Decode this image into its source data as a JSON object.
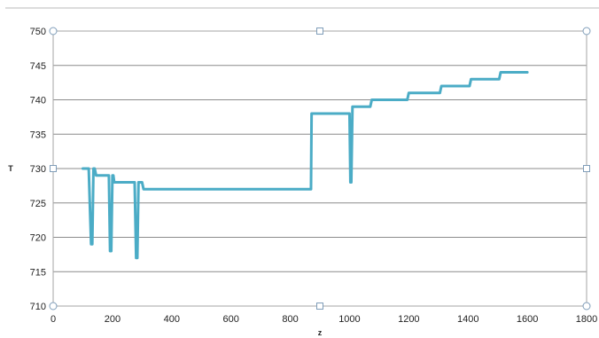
{
  "chart_data": {
    "type": "line",
    "title": "",
    "xlabel": "z",
    "ylabel": "T",
    "xlim": [
      0,
      1800
    ],
    "ylim": [
      710,
      750
    ],
    "x_ticks": [
      0,
      200,
      400,
      600,
      800,
      1000,
      1200,
      1400,
      1600,
      1800
    ],
    "y_ticks": [
      710,
      715,
      720,
      725,
      730,
      735,
      740,
      745,
      750
    ],
    "horizontal_grid": true,
    "vertical_grid": false,
    "legend": "none",
    "selection_handles": true,
    "line_color": "#4bacc6",
    "series": [
      {
        "x": [
          100,
          120,
          128,
          132,
          136,
          140,
          145,
          150,
          155,
          188,
          192,
          196,
          200,
          203,
          206,
          210,
          275,
          280,
          284,
          288,
          292,
          300,
          305,
          310,
          870,
          872,
          1000,
          1003,
          1006,
          1010,
          1015,
          1070,
          1075,
          1080,
          1195,
          1200,
          1305,
          1310,
          1405,
          1410,
          1505,
          1510,
          1600
        ],
        "y": [
          730,
          730,
          719,
          719,
          730,
          730,
          729,
          729,
          729,
          729,
          718,
          718,
          729,
          729,
          728,
          728,
          728,
          717,
          717,
          728,
          728,
          728,
          727,
          727,
          727,
          738,
          738,
          728,
          728,
          739,
          739,
          739,
          740,
          740,
          740,
          741,
          741,
          742,
          742,
          743,
          743,
          744,
          744
        ]
      }
    ]
  }
}
